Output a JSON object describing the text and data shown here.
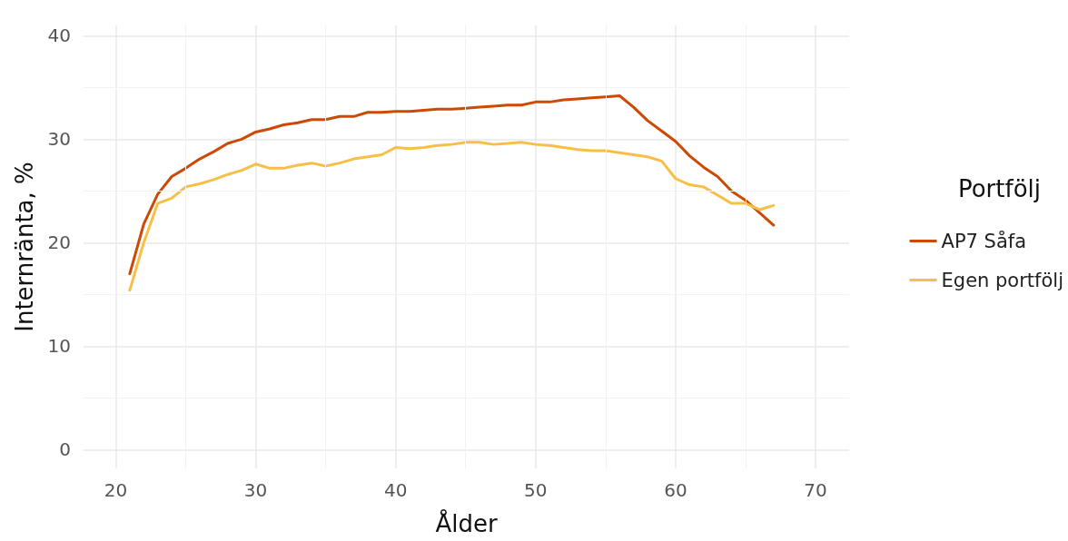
{
  "chart_data": {
    "type": "line",
    "xlabel": "Ålder",
    "ylabel": "Internränta, %",
    "legend_title": "Portfölj",
    "legend": "right",
    "grid": true,
    "line_style": "solid",
    "marker": "none",
    "x": [
      21,
      22,
      23,
      24,
      25,
      26,
      27,
      28,
      29,
      30,
      31,
      32,
      33,
      34,
      35,
      36,
      37,
      38,
      39,
      40,
      41,
      42,
      43,
      44,
      45,
      46,
      47,
      48,
      49,
      50,
      51,
      52,
      53,
      54,
      55,
      56,
      57,
      58,
      59,
      60,
      61,
      62,
      63,
      64,
      65,
      66,
      67
    ],
    "xlim": [
      17.7,
      72.4
    ],
    "xticks": [
      20,
      30,
      40,
      50,
      60,
      70
    ],
    "ylim": [
      -1.8,
      41
    ],
    "yticks": [
      0,
      10,
      20,
      30,
      40
    ],
    "series": [
      {
        "name": "AP7 Såfa",
        "color": "#cc4a06",
        "values": [
          17.0,
          21.8,
          24.7,
          26.4,
          27.2,
          28.1,
          28.8,
          29.6,
          30.0,
          30.7,
          31.0,
          31.4,
          31.6,
          31.9,
          31.9,
          32.2,
          32.2,
          32.6,
          32.6,
          32.7,
          32.7,
          32.8,
          32.9,
          32.9,
          33.0,
          33.1,
          33.2,
          33.3,
          33.3,
          33.6,
          33.6,
          33.8,
          33.9,
          34.0,
          34.1,
          34.2,
          33.1,
          31.8,
          30.8,
          29.8,
          28.4,
          27.3,
          26.4,
          25.0,
          24.1,
          22.9,
          21.7
        ]
      },
      {
        "name": "Egen portfölj",
        "color": "#f9be45",
        "values": [
          15.4,
          20.0,
          23.8,
          24.3,
          25.4,
          25.7,
          26.1,
          26.6,
          27.0,
          27.6,
          27.2,
          27.2,
          27.5,
          27.7,
          27.4,
          27.7,
          28.1,
          28.3,
          28.5,
          29.2,
          29.1,
          29.2,
          29.4,
          29.5,
          29.7,
          29.7,
          29.5,
          29.6,
          29.7,
          29.5,
          29.4,
          29.2,
          29.0,
          28.9,
          28.9,
          28.7,
          28.5,
          28.3,
          27.9,
          26.2,
          25.6,
          25.4,
          24.6,
          23.8,
          23.8,
          23.2,
          23.6
        ]
      }
    ]
  }
}
